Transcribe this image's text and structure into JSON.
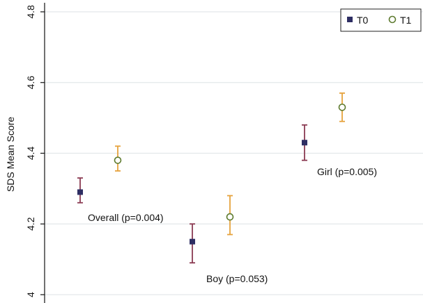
{
  "chart_data": {
    "type": "scatter",
    "ylabel": "SDS Mean Score",
    "ylim": [
      4,
      4.8
    ],
    "yticks": [
      {
        "value": 4,
        "label": "4"
      },
      {
        "value": 4.2,
        "label": "4.2"
      },
      {
        "value": 4.4,
        "label": "4.4"
      },
      {
        "value": 4.6,
        "label": "4.6"
      },
      {
        "value": 4.8,
        "label": "4.8"
      }
    ],
    "grid": true,
    "legend_position": "top-right",
    "series": [
      {
        "name": "T0",
        "marker": "filled-square",
        "marker_color": "#2e2e63",
        "errorbar_color": "#8b3a52",
        "points": [
          {
            "group": "Overall",
            "mean": 4.29,
            "lower": 4.26,
            "upper": 4.33
          },
          {
            "group": "Boy",
            "mean": 4.15,
            "lower": 4.09,
            "upper": 4.2
          },
          {
            "group": "Girl",
            "mean": 4.43,
            "lower": 4.38,
            "upper": 4.48
          }
        ]
      },
      {
        "name": "T1",
        "marker": "hollow-circle",
        "marker_color": "#5d7a2e",
        "errorbar_color": "#e6a23c",
        "points": [
          {
            "group": "Overall",
            "mean": 4.38,
            "lower": 4.35,
            "upper": 4.42
          },
          {
            "group": "Boy",
            "mean": 4.22,
            "lower": 4.17,
            "upper": 4.28
          },
          {
            "group": "Girl",
            "mean": 4.53,
            "lower": 4.49,
            "upper": 4.57
          }
        ]
      }
    ],
    "annotations": [
      {
        "group": "Overall",
        "text": "Overall (p=0.004)"
      },
      {
        "group": "Boy",
        "text": "Boy (p=0.053)"
      },
      {
        "group": "Girl",
        "text": "Girl (p=0.005)"
      }
    ]
  }
}
